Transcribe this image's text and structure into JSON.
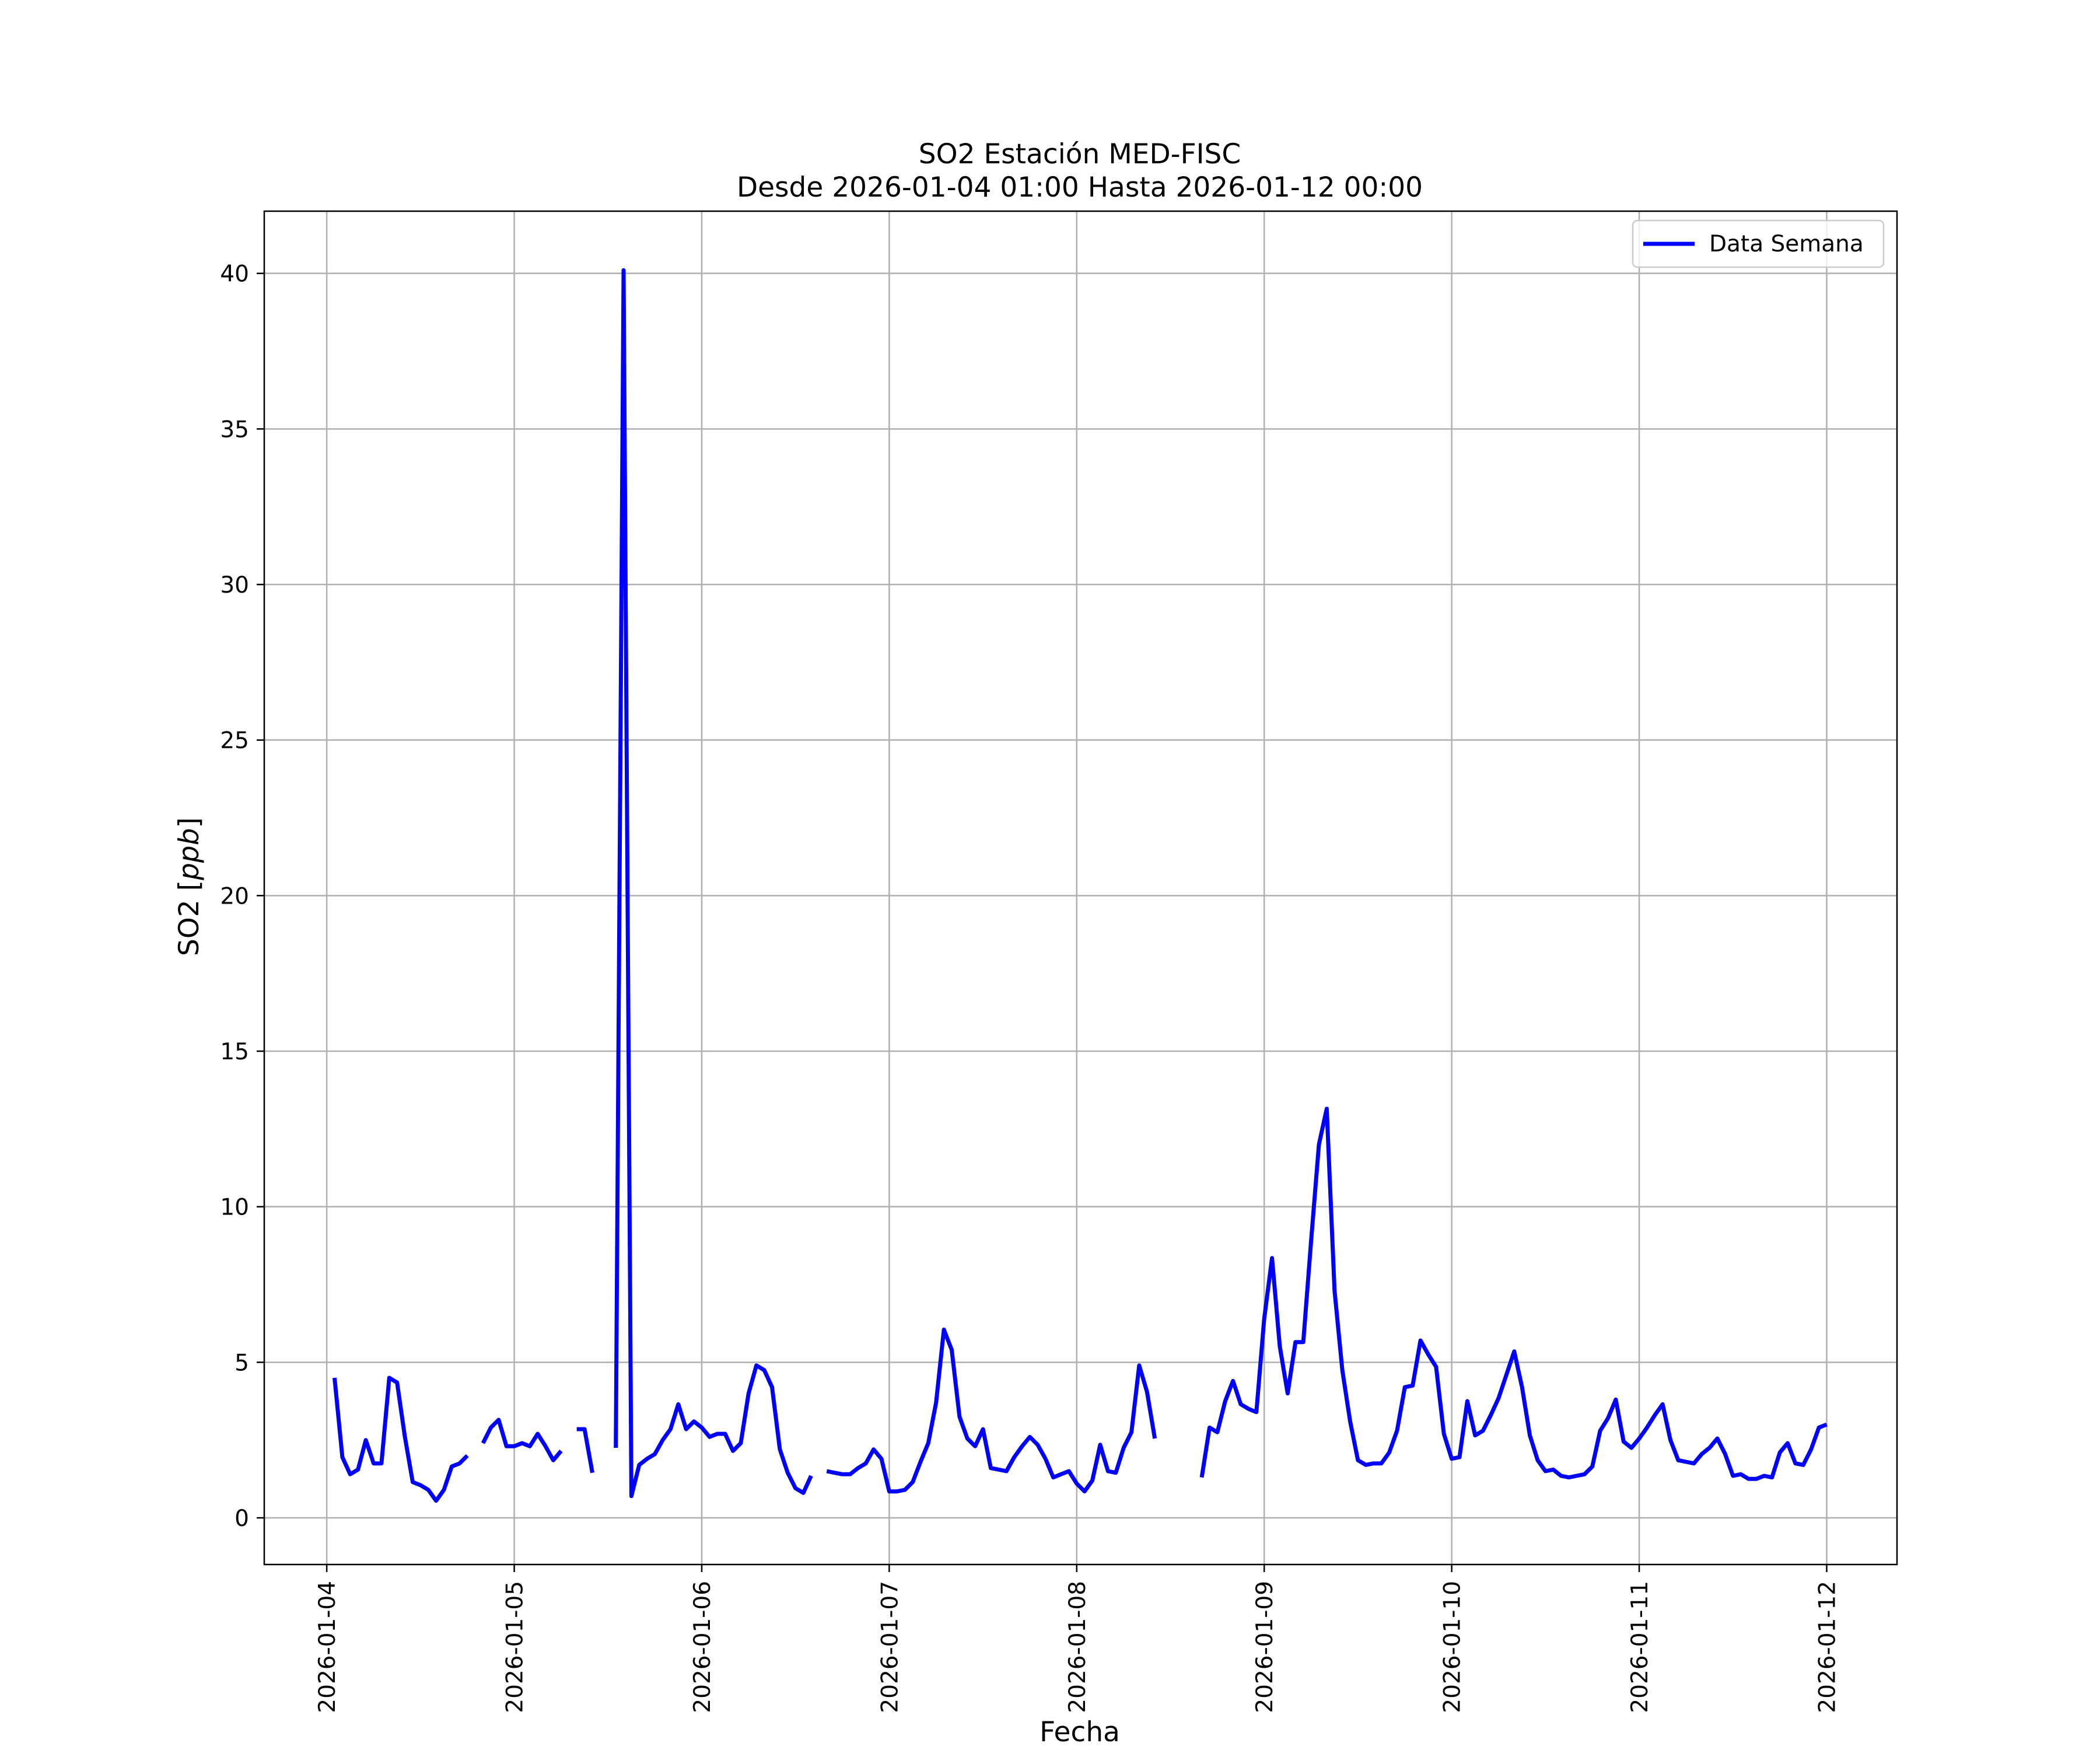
{
  "chart_data": {
    "type": "line",
    "title": "SO2 Estación MED-FISC",
    "subtitle": "Desde 2026-01-04 01:00 Hasta 2026-01-12 00:00",
    "xlabel": "Fecha",
    "ylabel_prefix": "SO2 [",
    "ylabel_unit": "ppb",
    "ylabel_suffix": "]",
    "ylim": [
      -1.5,
      42
    ],
    "xlim": [
      "2026-01-03 16:00",
      "2026-01-12 09:00"
    ],
    "yticks": [
      0,
      5,
      10,
      15,
      20,
      25,
      30,
      35,
      40
    ],
    "xticks": [
      "2026-01-04",
      "2026-01-05",
      "2026-01-06",
      "2026-01-07",
      "2026-01-08",
      "2026-01-09",
      "2026-01-10",
      "2026-01-11",
      "2026-01-12"
    ],
    "grid": true,
    "legend_position": "top-right",
    "line_color": "#0000ff",
    "series": [
      {
        "name": "Data Semana",
        "points": [
          [
            "2026-01-04 01:00",
            4.5
          ],
          [
            "2026-01-04 02:00",
            1.95
          ],
          [
            "2026-01-04 03:00",
            1.4
          ],
          [
            "2026-01-04 04:00",
            1.55
          ],
          [
            "2026-01-04 05:00",
            2.5
          ],
          [
            "2026-01-04 06:00",
            1.75
          ],
          [
            "2026-01-04 07:00",
            1.75
          ],
          [
            "2026-01-04 08:00",
            4.5
          ],
          [
            "2026-01-04 09:00",
            4.35
          ],
          [
            "2026-01-04 10:00",
            2.6
          ],
          [
            "2026-01-04 11:00",
            1.15
          ],
          [
            "2026-01-04 12:00",
            1.05
          ],
          [
            "2026-01-04 13:00",
            0.9
          ],
          [
            "2026-01-04 14:00",
            0.55
          ],
          [
            "2026-01-04 15:00",
            0.9
          ],
          [
            "2026-01-04 16:00",
            1.65
          ],
          [
            "2026-01-04 17:00",
            1.75
          ],
          [
            "2026-01-04 18:00",
            2.0
          ],
          [
            "2026-01-04 19:00",
            null
          ],
          [
            "2026-01-04 20:00",
            2.4
          ],
          [
            "2026-01-04 21:00",
            2.9
          ],
          [
            "2026-01-04 22:00",
            3.15
          ],
          [
            "2026-01-04 23:00",
            2.3
          ],
          [
            "2026-01-05 00:00",
            2.3
          ],
          [
            "2026-01-05 01:00",
            2.4
          ],
          [
            "2026-01-05 02:00",
            2.3
          ],
          [
            "2026-01-05 03:00",
            2.7
          ],
          [
            "2026-01-05 04:00",
            2.3
          ],
          [
            "2026-01-05 05:00",
            1.85
          ],
          [
            "2026-01-05 06:00",
            2.15
          ],
          [
            "2026-01-05 07:00",
            null
          ],
          [
            "2026-01-05 08:00",
            2.85
          ],
          [
            "2026-01-05 09:00",
            2.85
          ],
          [
            "2026-01-05 10:00",
            1.45
          ],
          [
            "2026-01-05 11:00",
            null
          ],
          [
            "2026-01-05 12:00",
            null
          ],
          [
            "2026-01-05 13:00",
            2.25
          ],
          [
            "2026-01-05 14:00",
            40.1
          ],
          [
            "2026-01-05 15:00",
            0.7
          ],
          [
            "2026-01-05 16:00",
            1.7
          ],
          [
            "2026-01-05 17:00",
            1.9
          ],
          [
            "2026-01-05 18:00",
            2.05
          ],
          [
            "2026-01-05 19:00",
            2.5
          ],
          [
            "2026-01-05 20:00",
            2.85
          ],
          [
            "2026-01-05 21:00",
            3.65
          ],
          [
            "2026-01-05 22:00",
            2.85
          ],
          [
            "2026-01-05 23:00",
            3.1
          ],
          [
            "2026-01-06 00:00",
            2.9
          ],
          [
            "2026-01-06 01:00",
            2.6
          ],
          [
            "2026-01-06 02:00",
            2.7
          ],
          [
            "2026-01-06 03:00",
            2.7
          ],
          [
            "2026-01-06 04:00",
            2.15
          ],
          [
            "2026-01-06 05:00",
            2.4
          ],
          [
            "2026-01-06 06:00",
            4.0
          ],
          [
            "2026-01-06 07:00",
            4.9
          ],
          [
            "2026-01-06 08:00",
            4.75
          ],
          [
            "2026-01-06 09:00",
            4.2
          ],
          [
            "2026-01-06 10:00",
            2.2
          ],
          [
            "2026-01-06 11:00",
            1.45
          ],
          [
            "2026-01-06 12:00",
            0.95
          ],
          [
            "2026-01-06 13:00",
            0.8
          ],
          [
            "2026-01-06 14:00",
            1.35
          ],
          [
            "2026-01-06 15:00",
            null
          ],
          [
            "2026-01-06 16:00",
            1.5
          ],
          [
            "2026-01-06 17:00",
            1.45
          ],
          [
            "2026-01-06 18:00",
            1.4
          ],
          [
            "2026-01-06 19:00",
            1.4
          ],
          [
            "2026-01-06 20:00",
            1.6
          ],
          [
            "2026-01-06 21:00",
            1.75
          ],
          [
            "2026-01-06 22:00",
            2.2
          ],
          [
            "2026-01-06 23:00",
            1.9
          ],
          [
            "2026-01-07 00:00",
            0.85
          ],
          [
            "2026-01-07 01:00",
            0.85
          ],
          [
            "2026-01-07 02:00",
            0.9
          ],
          [
            "2026-01-07 03:00",
            1.15
          ],
          [
            "2026-01-07 04:00",
            1.8
          ],
          [
            "2026-01-07 05:00",
            2.4
          ],
          [
            "2026-01-07 06:00",
            3.7
          ],
          [
            "2026-01-07 07:00",
            6.05
          ],
          [
            "2026-01-07 08:00",
            5.4
          ],
          [
            "2026-01-07 09:00",
            3.25
          ],
          [
            "2026-01-07 10:00",
            2.55
          ],
          [
            "2026-01-07 11:00",
            2.3
          ],
          [
            "2026-01-07 12:00",
            2.85
          ],
          [
            "2026-01-07 13:00",
            1.6
          ],
          [
            "2026-01-07 14:00",
            1.55
          ],
          [
            "2026-01-07 15:00",
            1.5
          ],
          [
            "2026-01-07 16:00",
            1.95
          ],
          [
            "2026-01-07 17:00",
            2.3
          ],
          [
            "2026-01-07 18:00",
            2.6
          ],
          [
            "2026-01-07 19:00",
            2.35
          ],
          [
            "2026-01-07 20:00",
            1.9
          ],
          [
            "2026-01-07 21:00",
            1.3
          ],
          [
            "2026-01-07 22:00",
            1.4
          ],
          [
            "2026-01-07 23:00",
            1.5
          ],
          [
            "2026-01-08 00:00",
            1.1
          ],
          [
            "2026-01-08 01:00",
            0.85
          ],
          [
            "2026-01-08 02:00",
            1.2
          ],
          [
            "2026-01-08 03:00",
            2.35
          ],
          [
            "2026-01-08 04:00",
            1.5
          ],
          [
            "2026-01-08 05:00",
            1.45
          ],
          [
            "2026-01-08 06:00",
            2.25
          ],
          [
            "2026-01-08 07:00",
            2.75
          ],
          [
            "2026-01-08 08:00",
            4.9
          ],
          [
            "2026-01-08 09:00",
            4.05
          ],
          [
            "2026-01-08 10:00",
            2.55
          ],
          [
            "2026-01-08 11:00",
            null
          ],
          [
            "2026-01-08 12:00",
            null
          ],
          [
            "2026-01-08 13:00",
            null
          ],
          [
            "2026-01-08 14:00",
            null
          ],
          [
            "2026-01-08 15:00",
            null
          ],
          [
            "2026-01-08 16:00",
            1.3
          ],
          [
            "2026-01-08 17:00",
            2.9
          ],
          [
            "2026-01-08 18:00",
            2.75
          ],
          [
            "2026-01-08 19:00",
            3.75
          ],
          [
            "2026-01-08 20:00",
            4.4
          ],
          [
            "2026-01-08 21:00",
            3.65
          ],
          [
            "2026-01-08 22:00",
            3.5
          ],
          [
            "2026-01-08 23:00",
            3.4
          ],
          [
            "2026-01-09 00:00",
            6.4
          ],
          [
            "2026-01-09 01:00",
            8.35
          ],
          [
            "2026-01-09 02:00",
            5.5
          ],
          [
            "2026-01-09 03:00",
            4.0
          ],
          [
            "2026-01-09 04:00",
            5.65
          ],
          [
            "2026-01-09 05:00",
            5.65
          ],
          [
            "2026-01-09 06:00",
            8.9
          ],
          [
            "2026-01-09 07:00",
            12.0
          ],
          [
            "2026-01-09 08:00",
            13.15
          ],
          [
            "2026-01-09 09:00",
            7.3
          ],
          [
            "2026-01-09 10:00",
            4.75
          ],
          [
            "2026-01-09 11:00",
            3.1
          ],
          [
            "2026-01-09 12:00",
            1.85
          ],
          [
            "2026-01-09 13:00",
            1.7
          ],
          [
            "2026-01-09 14:00",
            1.75
          ],
          [
            "2026-01-09 15:00",
            1.75
          ],
          [
            "2026-01-09 16:00",
            2.1
          ],
          [
            "2026-01-09 17:00",
            2.8
          ],
          [
            "2026-01-09 18:00",
            4.2
          ],
          [
            "2026-01-09 19:00",
            4.25
          ],
          [
            "2026-01-09 20:00",
            5.7
          ],
          [
            "2026-01-09 21:00",
            5.25
          ],
          [
            "2026-01-09 22:00",
            4.85
          ],
          [
            "2026-01-09 23:00",
            2.7
          ],
          [
            "2026-01-10 00:00",
            1.9
          ],
          [
            "2026-01-10 01:00",
            1.95
          ],
          [
            "2026-01-10 02:00",
            3.75
          ],
          [
            "2026-01-10 03:00",
            2.65
          ],
          [
            "2026-01-10 04:00",
            2.8
          ],
          [
            "2026-01-10 05:00",
            3.3
          ],
          [
            "2026-01-10 06:00",
            3.85
          ],
          [
            "2026-01-10 07:00",
            4.6
          ],
          [
            "2026-01-10 08:00",
            5.35
          ],
          [
            "2026-01-10 09:00",
            4.2
          ],
          [
            "2026-01-10 10:00",
            2.65
          ],
          [
            "2026-01-10 11:00",
            1.85
          ],
          [
            "2026-01-10 12:00",
            1.5
          ],
          [
            "2026-01-10 13:00",
            1.55
          ],
          [
            "2026-01-10 14:00",
            1.35
          ],
          [
            "2026-01-10 15:00",
            1.3
          ],
          [
            "2026-01-10 16:00",
            1.35
          ],
          [
            "2026-01-10 17:00",
            1.4
          ],
          [
            "2026-01-10 18:00",
            1.65
          ],
          [
            "2026-01-10 19:00",
            2.8
          ],
          [
            "2026-01-10 20:00",
            3.2
          ],
          [
            "2026-01-10 21:00",
            3.8
          ],
          [
            "2026-01-10 22:00",
            2.45
          ],
          [
            "2026-01-10 23:00",
            2.25
          ],
          [
            "2026-01-11 00:00",
            2.55
          ],
          [
            "2026-01-11 01:00",
            2.9
          ],
          [
            "2026-01-11 02:00",
            3.3
          ],
          [
            "2026-01-11 03:00",
            3.65
          ],
          [
            "2026-01-11 04:00",
            2.5
          ],
          [
            "2026-01-11 05:00",
            1.85
          ],
          [
            "2026-01-11 06:00",
            1.8
          ],
          [
            "2026-01-11 07:00",
            1.75
          ],
          [
            "2026-01-11 08:00",
            2.05
          ],
          [
            "2026-01-11 09:00",
            2.25
          ],
          [
            "2026-01-11 10:00",
            2.55
          ],
          [
            "2026-01-11 11:00",
            2.05
          ],
          [
            "2026-01-11 12:00",
            1.35
          ],
          [
            "2026-01-11 13:00",
            1.4
          ],
          [
            "2026-01-11 14:00",
            1.25
          ],
          [
            "2026-01-11 15:00",
            1.25
          ],
          [
            "2026-01-11 16:00",
            1.35
          ],
          [
            "2026-01-11 17:00",
            1.3
          ],
          [
            "2026-01-11 18:00",
            2.1
          ],
          [
            "2026-01-11 19:00",
            2.4
          ],
          [
            "2026-01-11 20:00",
            1.75
          ],
          [
            "2026-01-11 21:00",
            1.7
          ],
          [
            "2026-01-11 22:00",
            2.2
          ],
          [
            "2026-01-11 23:00",
            2.9
          ],
          [
            "2026-01-12 00:00",
            3.0
          ]
        ]
      }
    ]
  }
}
